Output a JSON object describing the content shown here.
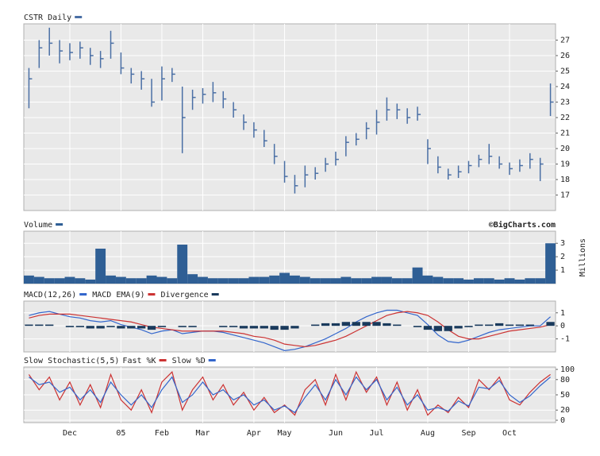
{
  "chart_data": [
    {
      "type": "ohlc",
      "title": "CSTR Daily",
      "color": "#4a6fa5",
      "high": [
        25.2,
        27.0,
        27.8,
        27.0,
        26.8,
        26.9,
        26.5,
        26.3,
        27.6,
        26.2,
        25.2,
        25.0,
        24.5,
        25.3,
        25.2,
        24.0,
        23.8,
        23.9,
        24.3,
        23.7,
        23.0,
        22.2,
        21.7,
        21.2,
        20.3,
        19.2,
        18.3,
        18.9,
        18.8,
        19.4,
        19.8,
        20.8,
        21.0,
        21.7,
        22.5,
        23.3,
        22.9,
        22.6,
        22.7,
        20.6,
        19.5,
        18.7,
        18.9,
        19.2,
        19.6,
        20.3,
        19.5,
        19.1,
        19.3,
        19.7,
        19.4,
        24.2
      ],
      "low": [
        22.6,
        25.2,
        26.0,
        25.5,
        25.7,
        25.8,
        25.4,
        25.2,
        25.8,
        24.8,
        24.2,
        23.8,
        22.7,
        23.1,
        24.3,
        19.7,
        22.5,
        22.9,
        23.0,
        22.6,
        22.0,
        21.2,
        20.7,
        20.1,
        19.0,
        17.8,
        17.1,
        17.5,
        18.0,
        18.5,
        18.9,
        19.5,
        20.2,
        20.6,
        20.9,
        21.8,
        21.9,
        21.6,
        21.8,
        19.0,
        18.4,
        18.0,
        18.1,
        18.4,
        18.8,
        19.0,
        18.7,
        18.3,
        18.5,
        18.7,
        17.9,
        22.1
      ],
      "close": [
        24.5,
        26.5,
        26.8,
        26.3,
        26.2,
        26.5,
        26.0,
        25.8,
        26.8,
        25.2,
        24.8,
        24.5,
        23.0,
        24.5,
        24.8,
        22.0,
        23.3,
        23.5,
        23.6,
        23.2,
        22.5,
        21.7,
        21.2,
        20.5,
        19.5,
        18.2,
        17.6,
        18.3,
        18.4,
        19.0,
        19.3,
        20.4,
        20.6,
        21.3,
        21.7,
        22.5,
        22.5,
        22.0,
        22.2,
        20.0,
        18.8,
        18.3,
        18.5,
        18.9,
        19.3,
        19.5,
        19.0,
        18.7,
        18.9,
        19.3,
        19.0,
        23.0
      ],
      "ylim": [
        16,
        28.05
      ],
      "yticks": [
        17,
        18,
        19,
        20,
        21,
        22,
        23,
        24,
        25,
        26,
        27
      ],
      "grid": true
    },
    {
      "type": "bar",
      "title": "Volume",
      "color": "#2f5f95",
      "annotation": "©BigCharts.com",
      "y_label": "Millions",
      "values": [
        0.6,
        0.5,
        0.4,
        0.4,
        0.5,
        0.4,
        0.3,
        2.6,
        0.6,
        0.5,
        0.4,
        0.4,
        0.6,
        0.5,
        0.4,
        2.9,
        0.7,
        0.5,
        0.4,
        0.4,
        0.4,
        0.4,
        0.5,
        0.5,
        0.6,
        0.8,
        0.6,
        0.5,
        0.4,
        0.4,
        0.4,
        0.5,
        0.4,
        0.4,
        0.5,
        0.5,
        0.4,
        0.4,
        1.2,
        0.6,
        0.5,
        0.4,
        0.4,
        0.3,
        0.4,
        0.4,
        0.3,
        0.4,
        0.3,
        0.4,
        0.4,
        3.0
      ],
      "ylim": [
        0,
        3.9
      ],
      "yticks": [
        1,
        2,
        3
      ],
      "grid": true
    },
    {
      "type": "line",
      "ylim": [
        -2,
        1.9
      ],
      "yticks": [
        1,
        0,
        -1
      ],
      "grid": true,
      "series": [
        {
          "name": "MACD(12,26)",
          "color": "#3366cc",
          "values": [
            0.8,
            1.0,
            1.1,
            0.9,
            0.7,
            0.6,
            0.4,
            0.3,
            0.4,
            0.1,
            -0.1,
            -0.3,
            -0.6,
            -0.4,
            -0.3,
            -0.6,
            -0.5,
            -0.4,
            -0.4,
            -0.5,
            -0.7,
            -0.9,
            -1.1,
            -1.3,
            -1.6,
            -1.9,
            -1.8,
            -1.6,
            -1.3,
            -1.0,
            -0.6,
            -0.2,
            0.3,
            0.7,
            1.0,
            1.2,
            1.2,
            1.0,
            0.8,
            0.1,
            -0.7,
            -1.2,
            -1.3,
            -1.1,
            -0.8,
            -0.5,
            -0.3,
            -0.2,
            -0.1,
            0.0,
            0.0,
            0.7
          ]
        },
        {
          "name": "MACD EMA(9)",
          "color": "#cc3333",
          "values": [
            0.6,
            0.8,
            0.9,
            0.9,
            0.9,
            0.8,
            0.7,
            0.6,
            0.5,
            0.4,
            0.3,
            0.1,
            -0.1,
            -0.2,
            -0.3,
            -0.4,
            -0.4,
            -0.4,
            -0.4,
            -0.4,
            -0.5,
            -0.6,
            -0.8,
            -0.9,
            -1.1,
            -1.4,
            -1.5,
            -1.6,
            -1.5,
            -1.3,
            -1.1,
            -0.8,
            -0.4,
            0.0,
            0.4,
            0.8,
            1.0,
            1.1,
            1.0,
            0.8,
            0.3,
            -0.3,
            -0.8,
            -1.0,
            -1.0,
            -0.8,
            -0.6,
            -0.4,
            -0.3,
            -0.2,
            -0.1,
            0.1
          ]
        },
        {
          "name": "Divergence",
          "color": "#1a3a5c",
          "kind": "bar",
          "values": [
            0.1,
            0.1,
            0.1,
            0.0,
            -0.1,
            -0.1,
            -0.2,
            -0.2,
            -0.1,
            -0.2,
            -0.2,
            -0.2,
            -0.3,
            -0.1,
            0.0,
            -0.1,
            -0.1,
            0.0,
            0.0,
            -0.1,
            -0.1,
            -0.2,
            -0.2,
            -0.2,
            -0.3,
            -0.3,
            -0.2,
            0.0,
            0.1,
            0.2,
            0.2,
            0.3,
            0.3,
            0.3,
            0.3,
            0.2,
            0.1,
            0.0,
            -0.1,
            -0.3,
            -0.4,
            -0.4,
            -0.2,
            -0.1,
            0.1,
            0.1,
            0.2,
            0.1,
            0.1,
            0.1,
            0.0,
            0.3
          ]
        }
      ]
    },
    {
      "type": "line",
      "title": "Slow Stochastic(5,5)",
      "ylim": [
        -4.7,
        104.7
      ],
      "yticks": [
        0,
        20,
        50,
        80,
        100
      ],
      "grid": true,
      "categories": [
        null,
        null,
        null,
        null,
        "Dec",
        null,
        null,
        null,
        null,
        "05",
        null,
        null,
        null,
        "Feb",
        null,
        null,
        null,
        "Mar",
        null,
        null,
        null,
        null,
        "Apr",
        null,
        null,
        "May",
        null,
        null,
        null,
        null,
        "Jun",
        null,
        null,
        null,
        "Jul",
        null,
        null,
        null,
        null,
        "Aug",
        null,
        null,
        null,
        "Sep",
        null,
        null,
        null,
        "Oct",
        null,
        null,
        null,
        null
      ],
      "series": [
        {
          "name": "Fast %K",
          "color": "#cc3333",
          "values": [
            90,
            60,
            85,
            40,
            75,
            30,
            70,
            25,
            90,
            40,
            20,
            60,
            15,
            75,
            95,
            20,
            60,
            85,
            40,
            70,
            30,
            55,
            20,
            45,
            15,
            30,
            10,
            60,
            80,
            30,
            90,
            40,
            95,
            55,
            85,
            30,
            75,
            20,
            60,
            10,
            30,
            15,
            45,
            25,
            80,
            60,
            85,
            40,
            30,
            55,
            75,
            90
          ]
        },
        {
          "name": "Slow %D",
          "color": "#3366cc",
          "values": [
            85,
            70,
            75,
            55,
            65,
            40,
            60,
            35,
            75,
            50,
            30,
            50,
            25,
            60,
            85,
            35,
            50,
            75,
            50,
            60,
            40,
            50,
            30,
            40,
            20,
            28,
            15,
            45,
            70,
            40,
            80,
            50,
            85,
            60,
            80,
            40,
            65,
            30,
            50,
            20,
            25,
            18,
            38,
            28,
            65,
            62,
            78,
            50,
            35,
            48,
            68,
            85
          ]
        }
      ]
    }
  ]
}
